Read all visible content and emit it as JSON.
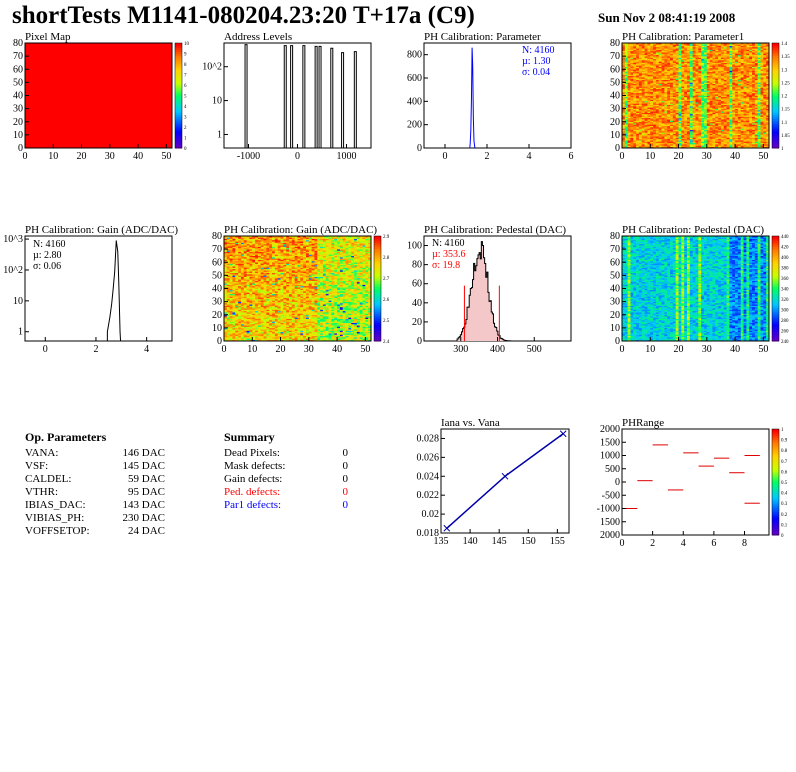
{
  "header": {
    "title": "shortTests M1141-080204.23:20 T+17a (C9)",
    "date": "Sun Nov  2 08:41:19 2008"
  },
  "op_params": {
    "heading": "Op. Parameters",
    "rows": [
      {
        "name": "VANA:",
        "value": "146 DAC"
      },
      {
        "name": "VSF:",
        "value": "145 DAC"
      },
      {
        "name": "CALDEL:",
        "value": "59 DAC"
      },
      {
        "name": "VTHR:",
        "value": "95 DAC"
      },
      {
        "name": "IBIAS_DAC:",
        "value": "143 DAC"
      },
      {
        "name": "VIBIAS_PH:",
        "value": "230 DAC"
      },
      {
        "name": "VOFFSETOP:",
        "value": "24 DAC"
      }
    ]
  },
  "summary": {
    "heading": "Summary",
    "rows": [
      {
        "name": "Dead Pixels:",
        "value": "0",
        "color": "#000000"
      },
      {
        "name": "Mask defects:",
        "value": "0",
        "color": "#000000"
      },
      {
        "name": "Gain defects:",
        "value": "0",
        "color": "#000000"
      },
      {
        "name": "Ped. defects:",
        "value": "0",
        "color": "#ff0000"
      },
      {
        "name": "Par1 defects:",
        "value": "0",
        "color": "#0000ff"
      }
    ]
  },
  "chart_data": [
    {
      "id": "pixel-map",
      "type": "heatmap",
      "title": "Pixel Map",
      "xlim": [
        0,
        52
      ],
      "ylim": [
        0,
        80
      ],
      "xticks": [
        0,
        10,
        20,
        30,
        40,
        50
      ],
      "yticks": [
        0,
        10,
        20,
        30,
        40,
        50,
        60,
        70,
        80
      ],
      "zlim": [
        0,
        10
      ],
      "zticks": [
        0,
        1,
        2,
        3,
        4,
        5,
        6,
        7,
        8,
        9,
        10
      ],
      "fill": "uniform",
      "uniform_value": 10
    },
    {
      "id": "address-levels",
      "type": "bar",
      "title": "Address Levels",
      "xlim": [
        -1500,
        1500
      ],
      "xtick_labels": [
        "-1000",
        "0",
        "1000"
      ],
      "ylog": true,
      "ytick_labels": [
        "1",
        "10",
        "10^2"
      ],
      "peaks": [
        [
          -1050,
          450
        ],
        [
          -250,
          420
        ],
        [
          -120,
          420
        ],
        [
          130,
          420
        ],
        [
          380,
          400
        ],
        [
          460,
          400
        ],
        [
          700,
          350
        ],
        [
          920,
          260
        ],
        [
          1180,
          280
        ]
      ]
    },
    {
      "id": "ph-parameter",
      "type": "bar",
      "title": "PH Calibration: Parameter",
      "xlim": [
        -1,
        6
      ],
      "ylim": [
        0,
        900
      ],
      "xticks": [
        0,
        2,
        4,
        6
      ],
      "yticks": [
        0,
        200,
        400,
        600,
        800
      ],
      "stats": [
        {
          "label": "N: 4160",
          "color": "#0000ff"
        },
        {
          "label": "µ: 1.30",
          "color": "#0000ff"
        },
        {
          "label": "σ: 0.04",
          "color": "#0000ff"
        }
      ],
      "mean": 1.3,
      "sigma": 0.04,
      "entries": 4160
    },
    {
      "id": "ph-parameter1",
      "type": "heatmap",
      "title": "PH Calibration: Parameter1",
      "xlim": [
        0,
        52
      ],
      "ylim": [
        0,
        80
      ],
      "xticks": [
        0,
        10,
        20,
        30,
        40,
        50
      ],
      "yticks": [
        0,
        10,
        20,
        30,
        40,
        50,
        60,
        70,
        80
      ],
      "zlim": [
        0.9,
        1.45
      ],
      "zticks": [
        "1",
        "1.05",
        "1.1",
        "1.15",
        "1.2",
        "1.25",
        "1.3",
        "1.35",
        "1.4"
      ],
      "fill": "mostly-orange-red"
    },
    {
      "id": "ph-gain",
      "type": "bar",
      "title": "PH Calibration: Gain (ADC/DAC)",
      "xlim": [
        -0.8,
        5
      ],
      "ylog": true,
      "xticks": [
        0,
        2,
        4
      ],
      "ytick_labels": [
        "1",
        "10",
        "10^2",
        "10^3"
      ],
      "stats": [
        {
          "label": "N: 4160",
          "color": "#000000"
        },
        {
          "label": "µ: 2.80",
          "color": "#000000"
        },
        {
          "label": "σ: 0.06",
          "color": "#000000"
        }
      ]
    },
    {
      "id": "ph-gain-map",
      "type": "heatmap",
      "title": "PH Calibration: Gain (ADC/DAC)",
      "xlim": [
        0,
        52
      ],
      "ylim": [
        0,
        80
      ],
      "xticks": [
        0,
        10,
        20,
        30,
        40,
        50
      ],
      "yticks": [
        0,
        10,
        20,
        30,
        40,
        50,
        60,
        70,
        80
      ],
      "zlim": [
        2.35,
        2.95
      ],
      "zticks": [
        "2.4",
        "2.5",
        "2.6",
        "2.7",
        "2.8",
        "2.9"
      ],
      "fill": "mixed-yellow-red"
    },
    {
      "id": "ph-pedestal",
      "type": "bar",
      "title": "PH Calibration: Pedestal (DAC)",
      "xlim": [
        200,
        600
      ],
      "ylim": [
        0,
        110
      ],
      "xticks": [
        300,
        400,
        500
      ],
      "yticks": [
        0,
        20,
        40,
        60,
        80,
        100
      ],
      "stats": [
        {
          "label": "N: 4160",
          "color": "#000000"
        },
        {
          "label": "µ: 353.6",
          "color": "#ff0000"
        },
        {
          "label": "σ: 19.8",
          "color": "#ff0000"
        }
      ],
      "cut_lines": [
        310,
        405
      ]
    },
    {
      "id": "ph-pedestal-map",
      "type": "heatmap",
      "title": "PH Calibration: Pedestal (DAC)",
      "xlim": [
        0,
        52
      ],
      "ylim": [
        0,
        80
      ],
      "xticks": [
        0,
        10,
        20,
        30,
        40,
        50
      ],
      "yticks": [
        0,
        10,
        20,
        30,
        40,
        50,
        60,
        70,
        80
      ],
      "zlim": [
        220,
        460
      ],
      "zticks": [
        "240",
        "260",
        "280",
        "300",
        "320",
        "340",
        "360",
        "380",
        "400",
        "420",
        "440"
      ],
      "fill": "mostly-cyan-blue"
    },
    {
      "id": "iana-vana",
      "type": "line",
      "title": "Iana vs. Vana",
      "x": [
        136,
        146,
        156
      ],
      "y": [
        0.0185,
        0.024,
        0.0285
      ],
      "xlim": [
        135,
        157
      ],
      "ylim": [
        0.018,
        0.029
      ],
      "xticks": [
        135,
        140,
        145,
        150,
        155
      ],
      "yticks": [
        "0.018",
        "0.02",
        "0.022",
        "0.024",
        "0.026",
        "0.028"
      ]
    },
    {
      "id": "phrange",
      "type": "scatter",
      "title": "PHRange",
      "xlim": [
        0,
        9.6
      ],
      "ylim": [
        -2000,
        2000
      ],
      "xticks": [
        0,
        2,
        4,
        6,
        8
      ],
      "yticks": [
        "2000",
        "1500",
        "1000",
        "500",
        "0",
        "-500",
        "-1000",
        "1500",
        "2000"
      ],
      "zticks": [
        "0",
        "0.1",
        "0.2",
        "0.3",
        "0.4",
        "0.5",
        "0.6",
        "0.7",
        "0.8",
        "0.9",
        "1"
      ],
      "segments": [
        [
          0.5,
          -1000
        ],
        [
          1.5,
          50
        ],
        [
          2.5,
          1400
        ],
        [
          3.5,
          -300
        ],
        [
          4.5,
          1100
        ],
        [
          5.5,
          600
        ],
        [
          6.5,
          900
        ],
        [
          7.5,
          350
        ],
        [
          8.5,
          1000
        ],
        [
          8.5,
          -800
        ]
      ]
    }
  ]
}
